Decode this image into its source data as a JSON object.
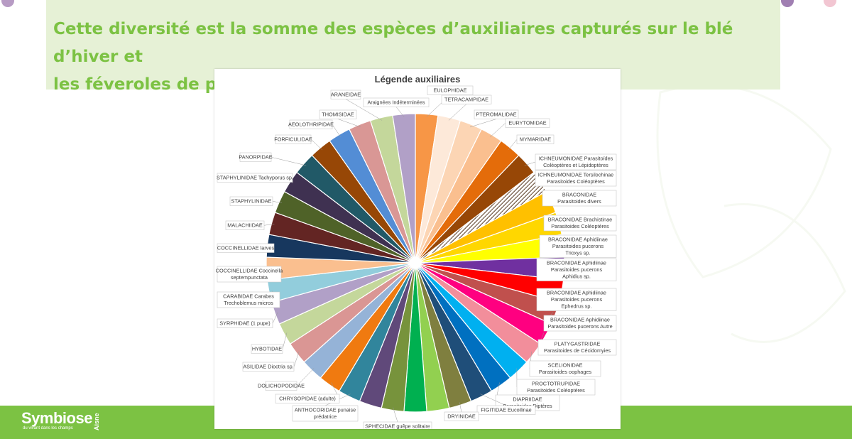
{
  "header": {
    "text_line1": "Cette diversité est la somme des espèces d’auxiliaires capturés sur le blé d’hiver et",
    "text_line2": "les féveroles de printemps ."
  },
  "logo": {
    "name": "Symbiose",
    "side": "Aisne",
    "tagline": "du vivant dans les champs"
  },
  "chart_data": {
    "type": "pie",
    "title": "Légende auxiliaires",
    "slices": [
      {
        "label": "EULOPHIDAE",
        "value": 1,
        "color": "#f79646"
      },
      {
        "label": "TETRACAMPIDAE",
        "value": 1,
        "color": "#fde9d9"
      },
      {
        "label": "PTEROMALIDAE",
        "value": 1,
        "color": "#fcd5b4"
      },
      {
        "label": "EURYTOMIDAE",
        "value": 1,
        "color": "#fabf8f"
      },
      {
        "label": "MYMARIDAE",
        "value": 1,
        "color": "#e46c0a"
      },
      {
        "label": "ICHNEUMONIDAE Parasitoïdes Coléoptères et Lépidoptères",
        "value": 1,
        "color": "#974706"
      },
      {
        "label": "ICHNEUMONIDAE Tersilochinae Parasitoides Coléoptères",
        "value": 1,
        "color": "#7f5a3a",
        "pattern": "hatch"
      },
      {
        "label": "BRACONIDAE Parasitoides divers",
        "value": 1,
        "color": "#ffc000"
      },
      {
        "label": "BRACONIDAE Brachistinae Parasitoides Coléoptères",
        "value": 1,
        "color": "#ffd700"
      },
      {
        "label": "BRACONIDAE Aphidiinae Parasitoides pucerons Trioxys sp.",
        "value": 1,
        "color": "#ffff00"
      },
      {
        "label": "BRACONIDAE Aphidiinae Parasitoides pucerons Aphidius sp.",
        "value": 1,
        "color": "#7030a0"
      },
      {
        "label": "BRACONIDAE Aphidiinae Parasitoides pucerons Ephedrus sp.",
        "value": 1,
        "color": "#ff0000"
      },
      {
        "label": "BRACONIDAE Aphidiinae Parasitoides pucerons Autre",
        "value": 1,
        "color": "#c0504d"
      },
      {
        "label": "PLATYGASTRIDAE Parasitoides de Cécidomyies",
        "value": 1,
        "color": "#ff0080"
      },
      {
        "label": "SCELIONIDAE Parasitoides oophages",
        "value": 1,
        "color": "#f28e9b"
      },
      {
        "label": "PROCTOTRUPIDAE Parasitoides Coléoptères",
        "value": 1,
        "color": "#00b0f0"
      },
      {
        "label": "DIAPRIIDAE Parasitoides Diptères",
        "value": 1,
        "color": "#0070c0"
      },
      {
        "label": "FIGITIDAE Eucoilinae",
        "value": 1,
        "color": "#1f4e79"
      },
      {
        "label": "DRYINIDAE",
        "value": 1,
        "color": "#7f7f3f"
      },
      {
        "label": "",
        "value": 1,
        "color": "#92d050"
      },
      {
        "label": "",
        "value": 1,
        "color": "#00b050"
      },
      {
        "label": "SPHECIDAE guêpe solitaire",
        "value": 1,
        "color": "#77933c"
      },
      {
        "label": "",
        "value": 1,
        "color": "#60497a"
      },
      {
        "label": "ANTHOCORIDAE punaise prédatrice",
        "value": 1,
        "color": "#31859c"
      },
      {
        "label": "CHRYSOPIDAE (adulte)",
        "value": 1,
        "color": "#f07a10"
      },
      {
        "label": "DOLICHOPODIDAE",
        "value": 1,
        "color": "#95b3d7"
      },
      {
        "label": "ASILIDAE Dioctria sp.",
        "value": 1,
        "color": "#da9694"
      },
      {
        "label": "HYBOTIDAE",
        "value": 1,
        "color": "#c4d79b"
      },
      {
        "label": "SYRPHIDAE (1 pupe)",
        "value": 1,
        "color": "#b1a0c7"
      },
      {
        "label": "CARABIDAE Carabes Trechoblemus micros",
        "value": 1,
        "color": "#92cddc"
      },
      {
        "label": "COCCINELLIDAE Coccinella septempunctata",
        "value": 1,
        "color": "#fabf8f"
      },
      {
        "label": "COCCINELLIDAE larves",
        "value": 1,
        "color": "#17375e"
      },
      {
        "label": "MALACHIIDAE",
        "value": 1,
        "color": "#632523"
      },
      {
        "label": "STAPHYLINIDAE",
        "value": 1,
        "color": "#4f6228"
      },
      {
        "label": "STAPHYLINIDAE Tachyporus sp.",
        "value": 1,
        "color": "#3f3151"
      },
      {
        "label": "PANORPIDAE",
        "value": 1,
        "color": "#215967"
      },
      {
        "label": "FORFICULIDAE",
        "value": 1,
        "color": "#974706"
      },
      {
        "label": "AEOLOTHRIPIDAE",
        "value": 1,
        "color": "#538dd5"
      },
      {
        "label": "THOMISIDAE",
        "value": 1,
        "color": "#d99795"
      },
      {
        "label": "ARANEIDAE",
        "value": 1,
        "color": "#c4d79b"
      },
      {
        "label": "Araignées Indéterminées",
        "value": 1,
        "color": "#b1a0c7"
      }
    ]
  }
}
